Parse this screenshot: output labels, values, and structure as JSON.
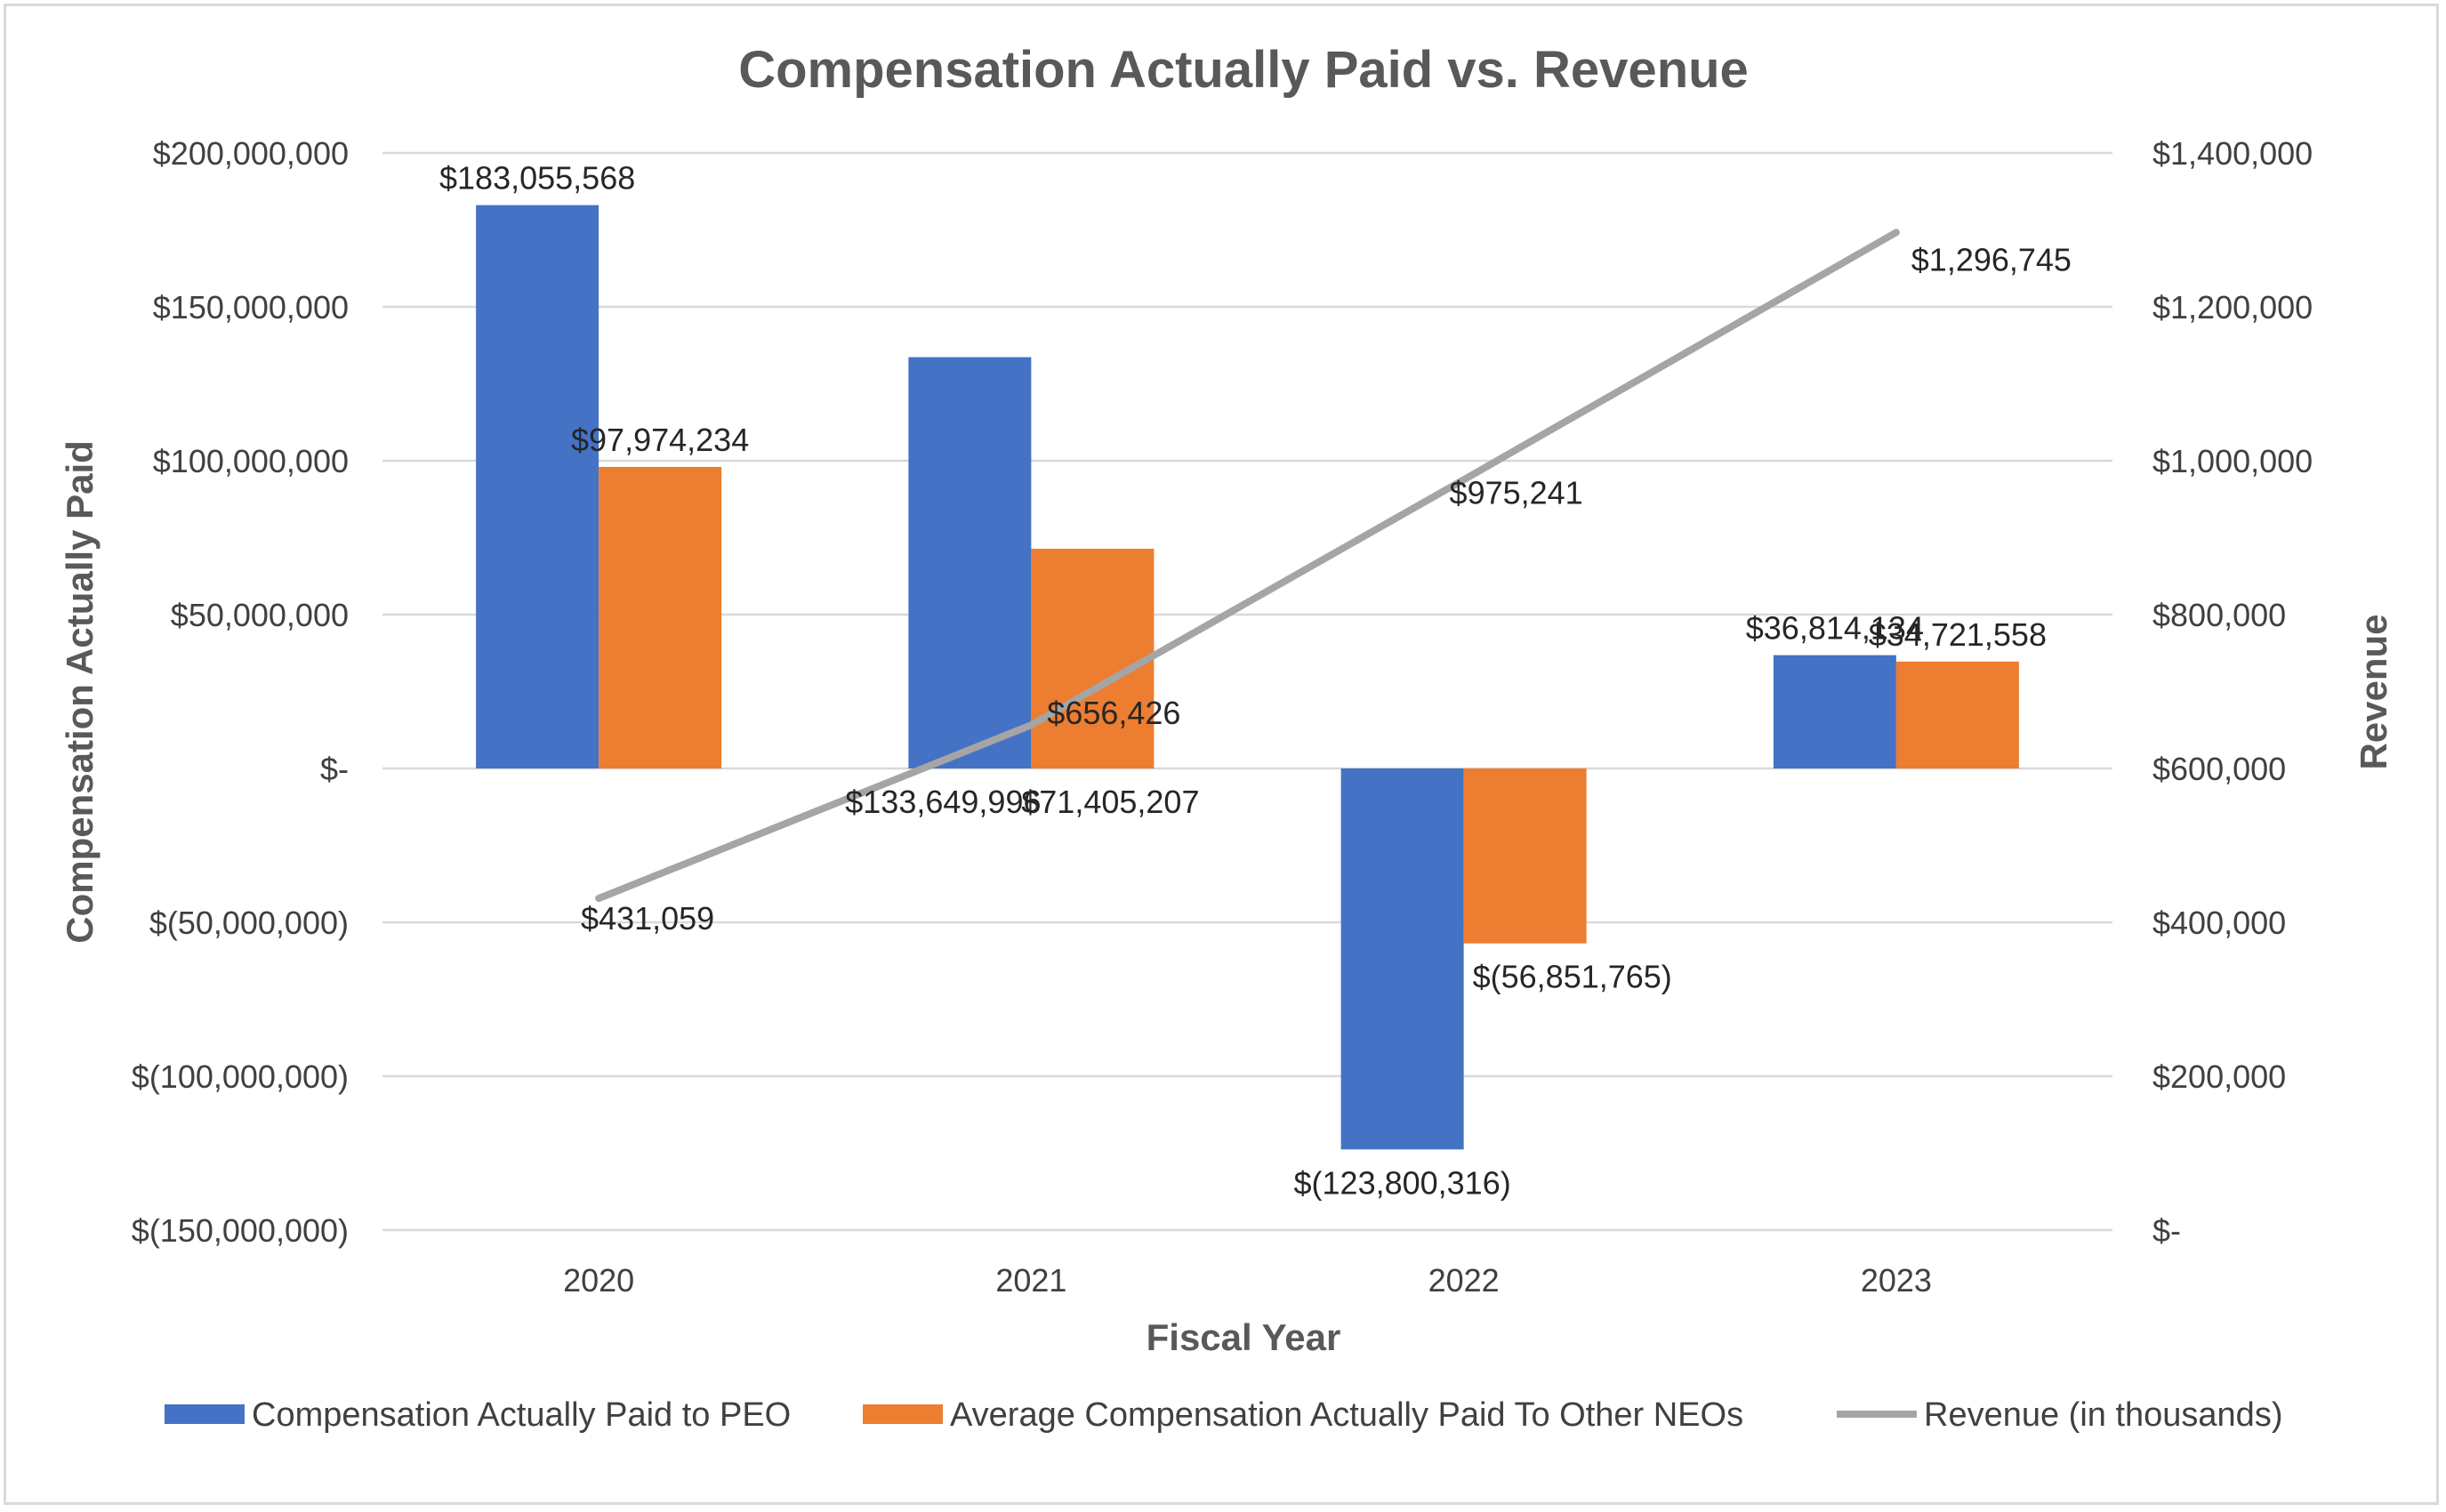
{
  "chart_data": {
    "type": "bar",
    "title": "Compensation Actually Paid vs. Revenue",
    "xlabel": "Fiscal Year",
    "ylabel": "Compensation Actually Paid",
    "y2label": "Revenue",
    "categories": [
      "2020",
      "2021",
      "2022",
      "2023"
    ],
    "ylim": [
      -150000000,
      200000000
    ],
    "y2lim": [
      0,
      1400000
    ],
    "yticks": [
      {
        "value": 200000000,
        "label": "$200,000,000"
      },
      {
        "value": 150000000,
        "label": "$150,000,000"
      },
      {
        "value": 100000000,
        "label": "$100,000,000"
      },
      {
        "value": 50000000,
        "label": "$50,000,000"
      },
      {
        "value": 0,
        "label": "$-"
      },
      {
        "value": -50000000,
        "label": "$(50,000,000)"
      },
      {
        "value": -100000000,
        "label": "$(100,000,000)"
      },
      {
        "value": -150000000,
        "label": "$(150,000,000)"
      }
    ],
    "y2ticks": [
      {
        "value": 1400000,
        "label": "$1,400,000"
      },
      {
        "value": 1200000,
        "label": "$1,200,000"
      },
      {
        "value": 1000000,
        "label": "$1,000,000"
      },
      {
        "value": 800000,
        "label": "$800,000"
      },
      {
        "value": 600000,
        "label": "$600,000"
      },
      {
        "value": 400000,
        "label": "$400,000"
      },
      {
        "value": 200000,
        "label": "$200,000"
      },
      {
        "value": 0,
        "label": "$-"
      }
    ],
    "grid": true,
    "legend_position": "bottom",
    "series": [
      {
        "name": "Compensation Actually Paid to PEO",
        "type": "bar",
        "axis": "left",
        "color": "#4472c4",
        "values": [
          183055568,
          133649996,
          -123800316,
          36814134
        ],
        "labels": [
          "$183,055,568",
          "$133,649,996",
          "$(123,800,316)",
          "$36,814,134"
        ]
      },
      {
        "name": "Average Compensation Actually Paid To Other NEOs",
        "type": "bar",
        "axis": "left",
        "color": "#ed7d31",
        "values": [
          97974234,
          71405207,
          -56851765,
          34721558
        ],
        "labels": [
          "$97,974,234",
          "$71,405,207",
          "$(56,851,765)",
          "$34,721,558"
        ]
      },
      {
        "name": "Revenue (in thousands)",
        "type": "line",
        "axis": "right",
        "color": "#a5a5a5",
        "values": [
          431059,
          656426,
          975241,
          1296745
        ],
        "labels": [
          "$431,059",
          "$656,426",
          "$975,241",
          "$1,296,745"
        ]
      }
    ]
  }
}
